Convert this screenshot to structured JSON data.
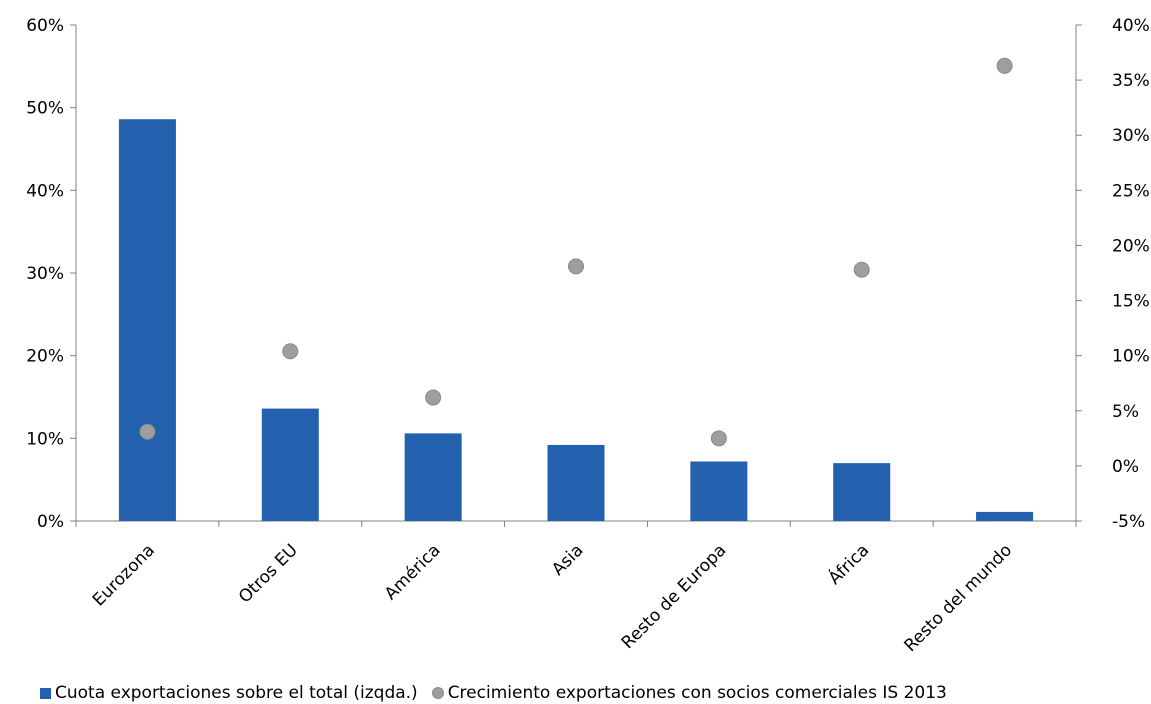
{
  "chart_data": {
    "type": "bar",
    "categories": [
      "Eurozona",
      "Otros EU",
      "América",
      "Asia",
      "Resto de Europa",
      "África",
      "Resto del mundo"
    ],
    "series": [
      {
        "name": "Cuota exportaciones sobre el total  (izqda.)",
        "kind": "bar",
        "axis": "left",
        "values": [
          48.6,
          13.6,
          10.6,
          9.2,
          7.2,
          7.0,
          1.1
        ]
      },
      {
        "name": "Crecimiento exportaciones con socios comerciales IS 2013",
        "kind": "scatter",
        "axis": "right",
        "values": [
          3.1,
          10.4,
          6.2,
          18.1,
          2.5,
          17.8,
          36.3
        ]
      }
    ],
    "y_left": {
      "min": 0,
      "max": 60,
      "step": 10,
      "tick_labels": [
        "0%",
        "10%",
        "20%",
        "30%",
        "40%",
        "50%",
        "60%"
      ]
    },
    "y_right": {
      "min": -5,
      "max": 40,
      "step": 5,
      "tick_labels": [
        "-5%",
        "0%",
        "5%",
        "10%",
        "15%",
        "20%",
        "25%",
        "30%",
        "35%",
        "40%"
      ]
    },
    "grid": false,
    "legend_position": "bottom",
    "colors": {
      "bar": "#2360AE",
      "dot": "#9E9E9E",
      "axis": "#808080"
    },
    "title": "",
    "xlabel": "",
    "ylabel": ""
  },
  "legend": {
    "bar_label": "Cuota exportaciones sobre el total  (izqda.)",
    "dot_label": "Crecimiento exportaciones con socios comerciales IS 2013"
  }
}
